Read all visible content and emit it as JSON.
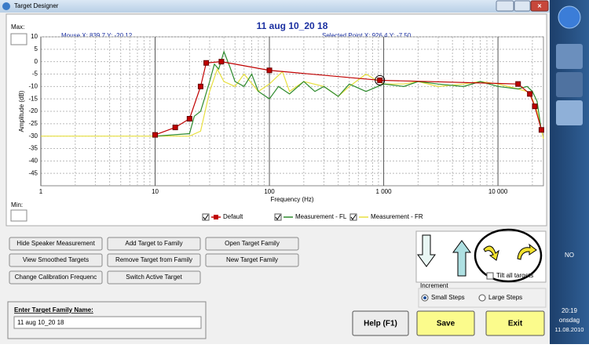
{
  "window": {
    "title": "Target Designer"
  },
  "chart_data": {
    "type": "line",
    "title": "11 aug 10_20 18",
    "mouse_readout": "Mouse  X: 839,7   Y: -20,12",
    "selected_readout": "Selected Point  X: 926,4   Y: -7,50",
    "max_label": "Max:",
    "min_label": "Min:",
    "x_label": "Frequency (Hz)",
    "y_label": "Amplitude (dB)",
    "xscale": "log",
    "minor_grid": true,
    "grid": true,
    "xlim": [
      1,
      25000
    ],
    "ylim": [
      -50,
      10
    ],
    "xticks": [
      1,
      10,
      100,
      {
        "value": 1000,
        "label": "1 000"
      },
      {
        "value": 10000,
        "label": "10 000"
      }
    ],
    "yticks": [
      10,
      5,
      0,
      -5,
      -10,
      -15,
      -20,
      -25,
      -30,
      -35,
      -40,
      -45
    ],
    "selected_point": {
      "x": 926.4,
      "y": -7.5
    },
    "series": [
      {
        "name": "Default",
        "color": "#c00000",
        "markers": true,
        "x": [
          10,
          15,
          20,
          25,
          28,
          38,
          100,
          926.4,
          15000,
          19000,
          21000,
          24000
        ],
        "values": [
          -29.5,
          -26.5,
          -23,
          -10,
          -0.5,
          0,
          -3.5,
          -7.5,
          -9,
          -13,
          -18,
          -27.5
        ]
      },
      {
        "name": "Measurement - FL",
        "color": "#2e8b2e",
        "markers": false,
        "x": [
          10,
          20,
          22,
          25,
          27,
          30,
          33,
          36,
          40,
          45,
          50,
          60,
          70,
          80,
          100,
          120,
          150,
          200,
          250,
          300,
          400,
          500,
          700,
          1000,
          1500,
          2000,
          3000,
          5000,
          7000,
          10000,
          15000,
          18000,
          20000,
          22000,
          24000
        ],
        "values": [
          -30,
          -29,
          -22,
          -20,
          -15,
          -8,
          -1,
          -3,
          4,
          -2,
          -8,
          -10,
          -5,
          -12,
          -15,
          -10,
          -13,
          -8,
          -12,
          -10,
          -14,
          -9,
          -12,
          -9,
          -10,
          -8,
          -9,
          -10,
          -8,
          -10,
          -11,
          -10,
          -12,
          -16,
          -28
        ]
      },
      {
        "name": "Measurement - FR",
        "color": "#e8e040",
        "markers": false,
        "x": [
          1,
          5,
          10,
          20,
          25,
          30,
          35,
          40,
          50,
          60,
          80,
          100,
          130,
          150,
          200,
          300,
          400,
          500,
          700,
          900,
          1000,
          1500,
          2000,
          3000,
          5000,
          7000,
          10000,
          15000,
          18000,
          20000,
          22000,
          25000
        ],
        "values": [
          -30,
          -30,
          -30,
          -30,
          -28,
          -12,
          -3,
          -8,
          -10,
          -5,
          -12,
          -9,
          -4,
          -12,
          -8,
          -10,
          -14,
          -10,
          -5,
          -8,
          -9,
          -9,
          -8,
          -10,
          -9,
          -8,
          -9,
          -11,
          -12,
          -15,
          -20,
          -31
        ]
      }
    ]
  },
  "buttons": [
    "Hide Speaker Measurement",
    "Add Target to Family",
    "Open Target Family",
    "View Smoothed Targets",
    "Remove Target from Family",
    "New Target Family",
    "Change Calibration Frequenc",
    "Switch Active Target"
  ],
  "family_name": {
    "label": "Enter Target Family Name:",
    "value": "11 aug 10_20 18"
  },
  "tilt_label": "Tilt all targets",
  "increment": {
    "label": "Increment",
    "options": [
      "Small Steps",
      "Large Steps"
    ]
  },
  "action_buttons": [
    "Help (F1)",
    "Save",
    "Exit"
  ],
  "taskbar": {
    "language": "NO",
    "time": "20:19",
    "day": "onsdag",
    "date": "11.08.2010"
  }
}
